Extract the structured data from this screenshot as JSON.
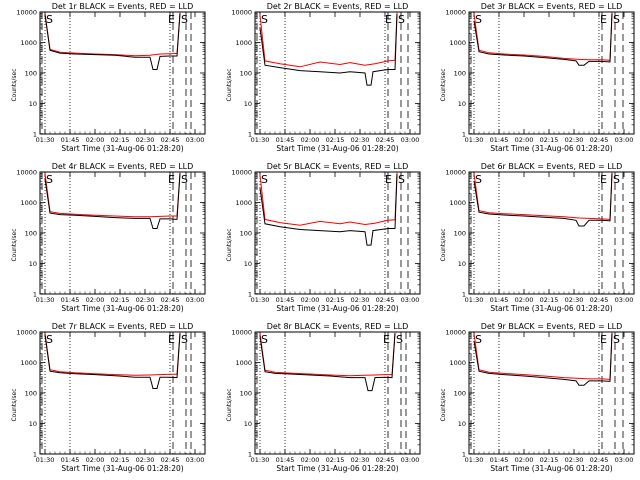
{
  "chart_data": [
    {
      "type": "line",
      "title": "Det 1r BLACK = Events, RED = LLD",
      "xlabel": "Start Time (31-Aug-06 01:28:20)",
      "ylabel": "Counts/sec",
      "ylim": [
        1,
        10000
      ],
      "yscale": "log",
      "xticks": [
        "01:30",
        "01:45",
        "02:00",
        "02:15",
        "02:30",
        "02:45",
        "03:00"
      ],
      "yticks": [
        "1",
        "10",
        "100",
        "1000",
        "10000"
      ],
      "markers": {
        "start": "S",
        "end": "E"
      },
      "series": [
        {
          "name": "Events",
          "color": "#000000",
          "x": [
            1.5,
            1.55,
            1.65,
            1.8,
            2,
            2.2,
            2.4,
            2.55,
            2.58,
            2.62,
            2.65,
            2.75,
            2.82,
            2.85
          ],
          "y": [
            8000,
            550,
            450,
            420,
            400,
            380,
            330,
            330,
            130,
            130,
            350,
            360,
            360,
            9000
          ]
        },
        {
          "name": "LLD",
          "color": "#ff0000",
          "x": [
            1.5,
            1.55,
            1.65,
            1.8,
            2,
            2.2,
            2.4,
            2.55,
            2.6,
            2.65,
            2.75,
            2.82,
            2.85
          ],
          "y": [
            9000,
            600,
            480,
            450,
            420,
            400,
            370,
            380,
            400,
            420,
            430,
            440,
            9500
          ]
        }
      ]
    },
    {
      "type": "line",
      "title": "Det 2r BLACK = Events, RED = LLD",
      "xlabel": "Start Time (31-Aug-06 01:28:20)",
      "ylabel": "Counts/sec",
      "ylim": [
        1,
        10000
      ],
      "yscale": "log",
      "xticks": [
        "01:30",
        "01:45",
        "02:00",
        "02:15",
        "02:30",
        "02:45",
        "03:00"
      ],
      "yticks": [
        "1",
        "10",
        "100",
        "1000",
        "10000"
      ],
      "markers": {
        "start": "S",
        "end": "E"
      },
      "series": [
        {
          "name": "Events",
          "color": "#000000",
          "x": [
            1.5,
            1.55,
            1.7,
            1.9,
            2.1,
            2.3,
            2.4,
            2.55,
            2.57,
            2.61,
            2.63,
            2.78,
            2.85,
            2.87
          ],
          "y": [
            3000,
            180,
            150,
            120,
            110,
            100,
            110,
            100,
            40,
            40,
            110,
            130,
            130,
            8500
          ]
        },
        {
          "name": "LLD",
          "color": "#ff0000",
          "x": [
            1.5,
            1.55,
            1.7,
            1.9,
            2.1,
            2.3,
            2.4,
            2.55,
            2.65,
            2.78,
            2.85,
            2.87
          ],
          "y": [
            8000,
            250,
            200,
            160,
            230,
            190,
            220,
            180,
            200,
            250,
            260,
            9500
          ]
        }
      ]
    },
    {
      "type": "line",
      "title": "Det 3r BLACK = Events, RED = LLD",
      "xlabel": "Start Time (31-Aug-06 01:28:20)",
      "ylabel": "Counts/sec",
      "ylim": [
        1,
        10000
      ],
      "yscale": "log",
      "xticks": [
        "01:30",
        "01:45",
        "02:00",
        "02:15",
        "02:30",
        "02:45",
        "03:00"
      ],
      "yticks": [
        "1",
        "10",
        "100",
        "1000",
        "10000"
      ],
      "markers": {
        "start": "S",
        "end": "E"
      },
      "series": [
        {
          "name": "Events",
          "color": "#000000",
          "x": [
            1.5,
            1.55,
            1.65,
            1.8,
            2,
            2.2,
            2.4,
            2.52,
            2.55,
            2.6,
            2.65,
            2.78,
            2.86,
            2.88
          ],
          "y": [
            5000,
            500,
            420,
            390,
            360,
            320,
            280,
            250,
            180,
            180,
            240,
            240,
            230,
            9000
          ]
        },
        {
          "name": "LLD",
          "color": "#ff0000",
          "x": [
            1.5,
            1.55,
            1.65,
            1.8,
            2,
            2.2,
            2.4,
            2.55,
            2.65,
            2.78,
            2.86,
            2.88
          ],
          "y": [
            9000,
            560,
            460,
            420,
            390,
            350,
            300,
            280,
            270,
            270,
            260,
            9500
          ]
        }
      ]
    },
    {
      "type": "line",
      "title": "Det 4r BLACK = Events, RED = LLD",
      "xlabel": "Start Time (31-Aug-06 01:28:20)",
      "ylabel": "Counts/sec",
      "ylim": [
        1,
        10000
      ],
      "yscale": "log",
      "xticks": [
        "01:30",
        "01:45",
        "02:00",
        "02:15",
        "02:30",
        "02:45",
        "03:00"
      ],
      "yticks": [
        "1",
        "10",
        "100",
        "1000",
        "10000"
      ],
      "markers": {
        "start": "S",
        "end": "E"
      },
      "series": [
        {
          "name": "Events",
          "color": "#000000",
          "x": [
            1.5,
            1.55,
            1.65,
            1.8,
            2,
            2.2,
            2.4,
            2.55,
            2.58,
            2.62,
            2.65,
            2.75,
            2.82,
            2.85
          ],
          "y": [
            6000,
            450,
            400,
            380,
            350,
            320,
            300,
            300,
            140,
            140,
            290,
            290,
            280,
            9000
          ]
        },
        {
          "name": "LLD",
          "color": "#ff0000",
          "x": [
            1.5,
            1.55,
            1.65,
            1.8,
            2,
            2.2,
            2.4,
            2.55,
            2.65,
            2.75,
            2.82,
            2.85
          ],
          "y": [
            9000,
            500,
            440,
            410,
            380,
            360,
            340,
            340,
            350,
            360,
            360,
            9500
          ]
        }
      ]
    },
    {
      "type": "line",
      "title": "Det 5r BLACK = Events, RED = LLD",
      "xlabel": "Start Time (31-Aug-06 01:28:20)",
      "ylabel": "Counts/sec",
      "ylim": [
        1,
        10000
      ],
      "yscale": "log",
      "xticks": [
        "01:30",
        "01:45",
        "02:00",
        "02:15",
        "02:30",
        "02:45",
        "03:00"
      ],
      "yticks": [
        "1",
        "10",
        "100",
        "1000",
        "10000"
      ],
      "markers": {
        "start": "S",
        "end": "E"
      },
      "series": [
        {
          "name": "Events",
          "color": "#000000",
          "x": [
            1.5,
            1.55,
            1.7,
            1.9,
            2.1,
            2.3,
            2.4,
            2.55,
            2.57,
            2.61,
            2.63,
            2.78,
            2.85,
            2.87
          ],
          "y": [
            3000,
            200,
            160,
            130,
            120,
            110,
            120,
            110,
            40,
            40,
            120,
            140,
            140,
            8500
          ]
        },
        {
          "name": "LLD",
          "color": "#ff0000",
          "x": [
            1.5,
            1.55,
            1.7,
            1.9,
            2.1,
            2.3,
            2.4,
            2.55,
            2.65,
            2.78,
            2.85,
            2.87
          ],
          "y": [
            8000,
            280,
            220,
            180,
            240,
            200,
            230,
            190,
            210,
            260,
            270,
            9500
          ]
        }
      ]
    },
    {
      "type": "line",
      "title": "Det 6r BLACK = Events, RED = LLD",
      "xlabel": "Start Time (31-Aug-06 01:28:20)",
      "ylabel": "Counts/sec",
      "ylim": [
        1,
        10000
      ],
      "yscale": "log",
      "xticks": [
        "01:30",
        "01:45",
        "02:00",
        "02:15",
        "02:30",
        "02:45",
        "03:00"
      ],
      "yticks": [
        "1",
        "10",
        "100",
        "1000",
        "10000"
      ],
      "markers": {
        "start": "S",
        "end": "E"
      },
      "series": [
        {
          "name": "Events",
          "color": "#000000",
          "x": [
            1.5,
            1.55,
            1.65,
            1.8,
            2,
            2.2,
            2.4,
            2.52,
            2.55,
            2.6,
            2.65,
            2.78,
            2.86,
            2.88
          ],
          "y": [
            5000,
            480,
            420,
            390,
            360,
            330,
            300,
            260,
            170,
            170,
            260,
            260,
            250,
            9000
          ]
        },
        {
          "name": "LLD",
          "color": "#ff0000",
          "x": [
            1.5,
            1.55,
            1.65,
            1.8,
            2,
            2.2,
            2.4,
            2.55,
            2.65,
            2.78,
            2.86,
            2.88
          ],
          "y": [
            9000,
            540,
            460,
            430,
            400,
            370,
            340,
            310,
            300,
            290,
            280,
            9500
          ]
        }
      ]
    },
    {
      "type": "line",
      "title": "Det 7r BLACK = Events, RED = LLD",
      "xlabel": "Start Time (31-Aug-06 01:28:20)",
      "ylabel": "Counts/sec",
      "ylim": [
        1,
        10000
      ],
      "yscale": "log",
      "xticks": [
        "01:30",
        "01:45",
        "02:00",
        "02:15",
        "02:30",
        "02:45",
        "03:00"
      ],
      "yticks": [
        "1",
        "10",
        "100",
        "1000",
        "10000"
      ],
      "markers": {
        "start": "S",
        "end": "E"
      },
      "series": [
        {
          "name": "Events",
          "color": "#000000",
          "x": [
            1.5,
            1.55,
            1.65,
            1.8,
            2,
            2.2,
            2.4,
            2.55,
            2.58,
            2.62,
            2.65,
            2.75,
            2.82,
            2.85
          ],
          "y": [
            8000,
            520,
            460,
            430,
            400,
            370,
            330,
            330,
            140,
            140,
            330,
            330,
            320,
            9000
          ]
        },
        {
          "name": "LLD",
          "color": "#ff0000",
          "x": [
            1.5,
            1.55,
            1.65,
            1.8,
            2,
            2.2,
            2.4,
            2.55,
            2.65,
            2.75,
            2.82,
            2.85
          ],
          "y": [
            9000,
            580,
            500,
            460,
            430,
            400,
            380,
            390,
            400,
            410,
            410,
            9500
          ]
        }
      ]
    },
    {
      "type": "line",
      "title": "Det 8r BLACK = Events, RED = LLD",
      "xlabel": "Start Time (31-Aug-06 01:28:20)",
      "ylabel": "Counts/sec",
      "ylim": [
        1,
        10000
      ],
      "yscale": "log",
      "xticks": [
        "01:30",
        "01:45",
        "02:00",
        "02:15",
        "02:30",
        "02:45",
        "03:00"
      ],
      "yticks": [
        "1",
        "10",
        "100",
        "1000",
        "10000"
      ],
      "markers": {
        "start": "S",
        "end": "E"
      },
      "series": [
        {
          "name": "Events",
          "color": "#000000",
          "x": [
            1.5,
            1.55,
            1.65,
            1.8,
            2,
            2.2,
            2.4,
            2.55,
            2.58,
            2.62,
            2.65,
            2.75,
            2.82,
            2.85
          ],
          "y": [
            7000,
            500,
            440,
            420,
            390,
            360,
            320,
            320,
            120,
            120,
            320,
            330,
            320,
            9000
          ]
        },
        {
          "name": "LLD",
          "color": "#ff0000",
          "x": [
            1.5,
            1.55,
            1.65,
            1.8,
            2,
            2.2,
            2.4,
            2.55,
            2.65,
            2.75,
            2.82,
            2.85
          ],
          "y": [
            9000,
            560,
            480,
            450,
            420,
            390,
            370,
            380,
            390,
            400,
            400,
            9500
          ]
        }
      ]
    },
    {
      "type": "line",
      "title": "Det 9r BLACK = Events, RED = LLD",
      "xlabel": "Start Time (31-Aug-06 01:28:20)",
      "ylabel": "Counts/sec",
      "ylim": [
        1,
        10000
      ],
      "yscale": "log",
      "xticks": [
        "01:30",
        "01:45",
        "02:00",
        "02:15",
        "02:30",
        "02:45",
        "03:00"
      ],
      "yticks": [
        "1",
        "10",
        "100",
        "1000",
        "10000"
      ],
      "markers": {
        "start": "S",
        "end": "E"
      },
      "series": [
        {
          "name": "Events",
          "color": "#000000",
          "x": [
            1.5,
            1.55,
            1.65,
            1.8,
            2,
            2.2,
            2.4,
            2.52,
            2.55,
            2.6,
            2.65,
            2.78,
            2.86,
            2.88
          ],
          "y": [
            5000,
            520,
            440,
            400,
            360,
            320,
            280,
            250,
            180,
            180,
            250,
            250,
            240,
            9000
          ]
        },
        {
          "name": "LLD",
          "color": "#ff0000",
          "x": [
            1.5,
            1.55,
            1.65,
            1.8,
            2,
            2.2,
            2.4,
            2.55,
            2.65,
            2.78,
            2.86,
            2.88
          ],
          "y": [
            9000,
            580,
            480,
            440,
            400,
            360,
            320,
            300,
            290,
            290,
            280,
            9500
          ]
        }
      ]
    }
  ]
}
